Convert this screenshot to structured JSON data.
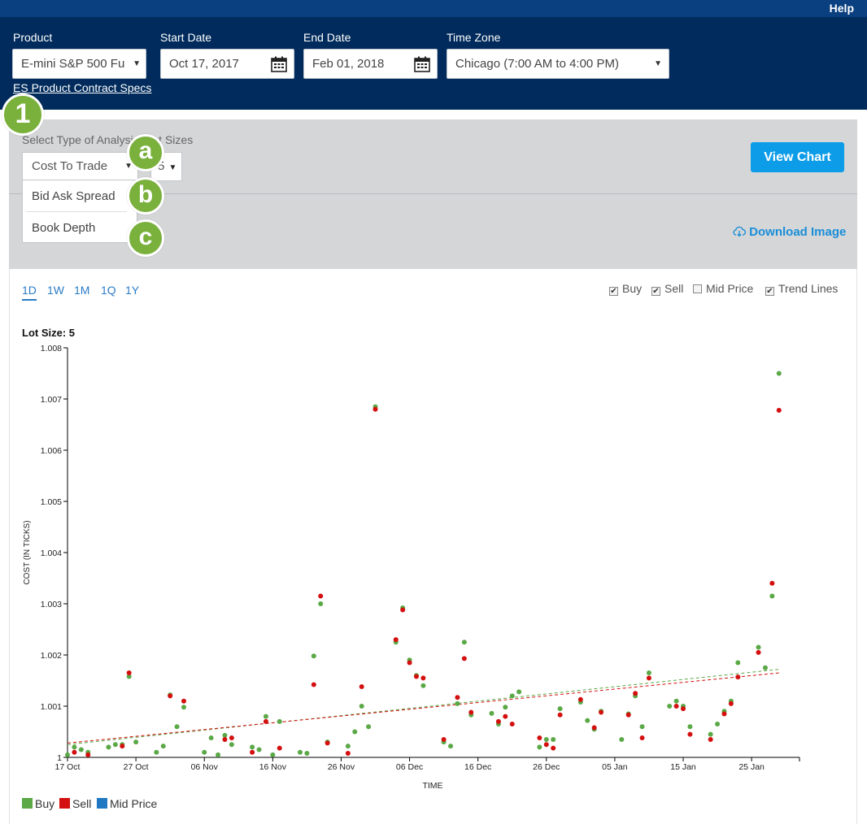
{
  "topbar": {
    "help_label": "Help"
  },
  "header": {
    "product_label": "Product",
    "product_value": "E-mini S&P 500 Fu",
    "start_label": "Start Date",
    "start_value": "Oct 17, 2017",
    "end_label": "End Date",
    "end_value": "Feb 01, 2018",
    "tz_label": "Time Zone",
    "tz_value": "Chicago (7:00 AM to 4:00 PM)",
    "specs_link": "ES Product Contract Specs"
  },
  "analysis": {
    "type_label": "Select Type of Analysis",
    "lot_label": "Lot Sizes",
    "type_value": "Cost To Trade",
    "lot_value": "5",
    "menu": [
      "Bid Ask Spread",
      "Book Depth"
    ],
    "view_chart": "View Chart",
    "download": "Download Image"
  },
  "badges": {
    "step": "1",
    "a": "a",
    "b": "b",
    "c": "c"
  },
  "ranges": [
    "1D",
    "1W",
    "1M",
    "1Q",
    "1Y"
  ],
  "toggles": [
    {
      "label": "Buy",
      "checked": true
    },
    {
      "label": "Sell",
      "checked": true
    },
    {
      "label": "Mid Price",
      "checked": false
    },
    {
      "label": "Trend Lines",
      "checked": true
    }
  ],
  "lot_title": "Lot Size: 5",
  "legend": [
    {
      "label": "Buy",
      "color": "#5aa846"
    },
    {
      "label": "Sell",
      "color": "#d40f0f"
    },
    {
      "label": "Mid Price",
      "color": "#1f78c1"
    }
  ],
  "chart_data": {
    "type": "scatter",
    "ylabel": "COST (IN TICKS)",
    "xlabel": "TIME",
    "ylim": [
      1,
      1.008
    ],
    "y_ticks": [
      "1",
      "1.001",
      "1.002",
      "1.003",
      "1.004",
      "1.005",
      "1.006",
      "1.007",
      "1.008"
    ],
    "x_ticks": [
      "17 Oct",
      "27 Oct",
      "06 Nov",
      "16 Nov",
      "26 Nov",
      "06 Dec",
      "16 Dec",
      "26 Dec",
      "05 Jan",
      "15 Jan",
      "25 Jan"
    ],
    "x_range_days": [
      0,
      107
    ],
    "grid": false,
    "trend_lines": true,
    "series": [
      {
        "name": "Buy",
        "color": "#5aa846",
        "points": [
          [
            0,
            1.00005
          ],
          [
            1,
            1.0002
          ],
          [
            2,
            1.00015
          ],
          [
            3,
            1.0001
          ],
          [
            6,
            1.0002
          ],
          [
            7,
            1.00025
          ],
          [
            8,
            1.00025
          ],
          [
            9,
            1.00158
          ],
          [
            10,
            1.0003
          ],
          [
            13,
            1.0001
          ],
          [
            14,
            1.00022
          ],
          [
            15,
            1.00122
          ],
          [
            16,
            1.0006
          ],
          [
            17,
            1.00098
          ],
          [
            20,
            1.0001
          ],
          [
            21,
            1.00038
          ],
          [
            22,
            1.00005
          ],
          [
            23,
            1.00043
          ],
          [
            24,
            1.00025
          ],
          [
            27,
            1.0002
          ],
          [
            28,
            1.00015
          ],
          [
            29,
            1.0008
          ],
          [
            30,
            1.00005
          ],
          [
            31,
            1.0007
          ],
          [
            34,
            1.0001
          ],
          [
            35,
            1.00008
          ],
          [
            36,
            1.00198
          ],
          [
            37,
            1.003
          ],
          [
            38,
            1.0003
          ],
          [
            41,
            1.00022
          ],
          [
            42,
            1.0005
          ],
          [
            43,
            1.001
          ],
          [
            44,
            1.0006
          ],
          [
            45,
            1.00685
          ],
          [
            48,
            1.00225
          ],
          [
            49,
            1.00292
          ],
          [
            50,
            1.0019
          ],
          [
            51,
            1.0016
          ],
          [
            52,
            1.0014
          ],
          [
            55,
            1.0003
          ],
          [
            56,
            1.00022
          ],
          [
            57,
            1.00105
          ],
          [
            58,
            1.00225
          ],
          [
            59,
            1.00083
          ],
          [
            62,
            1.00086
          ],
          [
            63,
            1.00065
          ],
          [
            64,
            1.00098
          ],
          [
            65,
            1.0012
          ],
          [
            66,
            1.00128
          ],
          [
            69,
            1.0002
          ],
          [
            70,
            1.00035
          ],
          [
            71,
            1.00035
          ],
          [
            72,
            1.00095
          ],
          [
            75,
            1.00108
          ],
          [
            76,
            1.00072
          ],
          [
            77,
            1.00055
          ],
          [
            78,
            1.0009
          ],
          [
            81,
            1.00035
          ],
          [
            82,
            1.00085
          ],
          [
            83,
            1.0012
          ],
          [
            84,
            1.0006
          ],
          [
            85,
            1.00165
          ],
          [
            88,
            1.001
          ],
          [
            89,
            1.0011
          ],
          [
            90,
            1.001
          ],
          [
            91,
            1.0006
          ],
          [
            94,
            1.00045
          ],
          [
            95,
            1.00065
          ],
          [
            96,
            1.0009
          ],
          [
            97,
            1.0011
          ],
          [
            98,
            1.00185
          ],
          [
            101,
            1.00215
          ],
          [
            102,
            1.00175
          ],
          [
            103,
            1.00315
          ],
          [
            104,
            1.0075
          ]
        ]
      },
      {
        "name": "Sell",
        "color": "#d40f0f",
        "points": [
          [
            1,
            1.0001
          ],
          [
            3,
            1.00005
          ],
          [
            8,
            1.00022
          ],
          [
            9,
            1.00165
          ],
          [
            15,
            1.0012
          ],
          [
            17,
            1.0011
          ],
          [
            23,
            1.00035
          ],
          [
            24,
            1.00038
          ],
          [
            27,
            1.0001
          ],
          [
            29,
            1.0007
          ],
          [
            31,
            1.00018
          ],
          [
            36,
            1.00142
          ],
          [
            37,
            1.00315
          ],
          [
            38,
            1.00028
          ],
          [
            41,
            1.00008
          ],
          [
            43,
            1.00138
          ],
          [
            45,
            1.0068
          ],
          [
            48,
            1.0023
          ],
          [
            49,
            1.00288
          ],
          [
            50,
            1.00185
          ],
          [
            51,
            1.00158
          ],
          [
            52,
            1.00155
          ],
          [
            55,
            1.00035
          ],
          [
            57,
            1.00117
          ],
          [
            58,
            1.00193
          ],
          [
            59,
            1.00088
          ],
          [
            63,
            1.0007
          ],
          [
            64,
            1.0008
          ],
          [
            65,
            1.00065
          ],
          [
            69,
            1.00038
          ],
          [
            70,
            1.00025
          ],
          [
            71,
            1.00018
          ],
          [
            72,
            1.00083
          ],
          [
            75,
            1.00113
          ],
          [
            77,
            1.00058
          ],
          [
            78,
            1.00088
          ],
          [
            82,
            1.00083
          ],
          [
            83,
            1.00125
          ],
          [
            84,
            1.00038
          ],
          [
            85,
            1.00155
          ],
          [
            89,
            1.001
          ],
          [
            90,
            1.00095
          ],
          [
            91,
            1.00045
          ],
          [
            94,
            1.00035
          ],
          [
            96,
            1.00085
          ],
          [
            97,
            1.00105
          ],
          [
            98,
            1.00157
          ],
          [
            101,
            1.00205
          ],
          [
            103,
            1.0034
          ],
          [
            104,
            1.00678
          ]
        ]
      }
    ],
    "trends": [
      {
        "name": "Buy",
        "color": "#5aa846",
        "from": [
          0,
          1.00025
        ],
        "to": [
          104,
          1.00172
        ]
      },
      {
        "name": "Sell",
        "color": "#d40f0f",
        "from": [
          0,
          1.00028
        ],
        "to": [
          104,
          1.00165
        ]
      }
    ]
  }
}
